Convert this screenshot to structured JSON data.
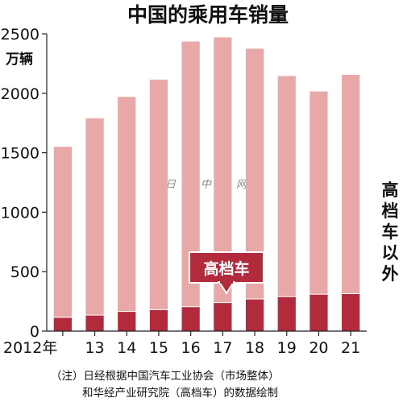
{
  "chart_data": {
    "type": "bar",
    "title": "中国的乘用车销量",
    "y_unit": "万辆",
    "ylim": [
      0,
      2500
    ],
    "yticks": [
      "0",
      "500",
      "1000",
      "1500",
      "2000",
      "2500"
    ],
    "categories": [
      "2012年",
      "13",
      "14",
      "15",
      "16",
      "17",
      "18",
      "19",
      "20",
      "21"
    ],
    "series": [
      {
        "name": "高档车",
        "values": [
          115,
          135,
          165,
          180,
          205,
          240,
          270,
          290,
          310,
          315
        ]
      },
      {
        "name": "高档车以外",
        "values": [
          1435,
          1655,
          1805,
          1935,
          2230,
          2230,
          2105,
          1855,
          1705,
          1840
        ]
      }
    ],
    "grid": false,
    "colors": {
      "luxury": "#b12b3d",
      "other": "#e8a8a7",
      "axis": "#222222"
    },
    "callout_label": "高档车",
    "side_label": "高档车以外",
    "notes": [
      "（注）日经根据中国汽车工业协会（市场整体）",
      "和华经产业研究院（高档车）的数据绘制"
    ],
    "watermark": "日经中文网"
  }
}
